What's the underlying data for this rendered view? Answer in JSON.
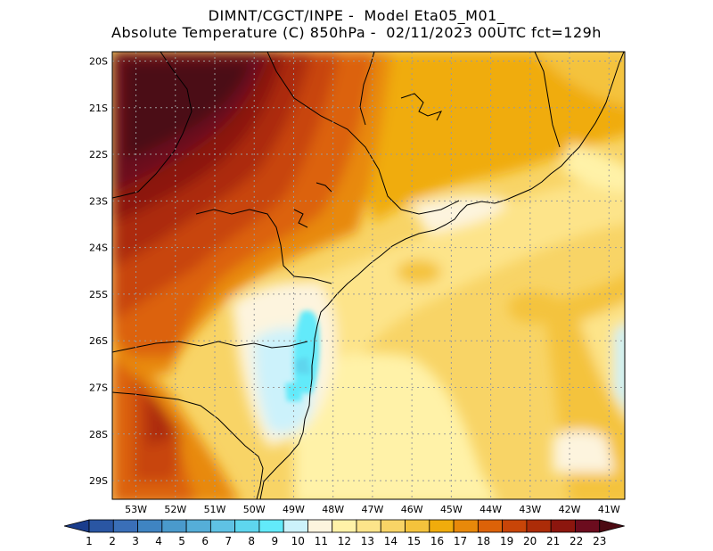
{
  "title": {
    "line1": "DIMNT/CGCT/INPE -  Model Eta05_M01_",
    "line2": "Absolute Temperature (C) 850hPa -  02/11/2023 00UTC fct=129h"
  },
  "map": {
    "lat_ticks": [
      "20S",
      "21S",
      "22S",
      "23S",
      "24S",
      "25S",
      "26S",
      "27S",
      "28S",
      "29S"
    ],
    "lon_ticks": [
      "53W",
      "52W",
      "51W",
      "50W",
      "49W",
      "48W",
      "47W",
      "46W",
      "45W",
      "44W",
      "43W",
      "42W",
      "41W"
    ],
    "grid": "dotted",
    "lon_range": [
      -53.6,
      -40.6
    ],
    "lat_range": [
      -29.4,
      -19.8
    ]
  },
  "colorbar": {
    "labels": [
      "1",
      "2",
      "3",
      "4",
      "5",
      "6",
      "7",
      "8",
      "9",
      "10",
      "11",
      "12",
      "13",
      "14",
      "15",
      "16",
      "17",
      "18",
      "19",
      "20",
      "21",
      "22",
      "23"
    ],
    "colors": [
      "#1a3d8c",
      "#2a56a3",
      "#3a6fb8",
      "#3f84c2",
      "#4a9acc",
      "#55aed8",
      "#5fc2e4",
      "#5ed6ee",
      "#62eafa",
      "#ccf2fb",
      "#fdf4de",
      "#fff2a8",
      "#fde48a",
      "#f8d466",
      "#f4c33c",
      "#f0ac0c",
      "#e8890a",
      "#dc6208",
      "#c84508",
      "#ac2c08",
      "#8c160e",
      "#6c0c1e",
      "#4c0a12"
    ]
  }
}
